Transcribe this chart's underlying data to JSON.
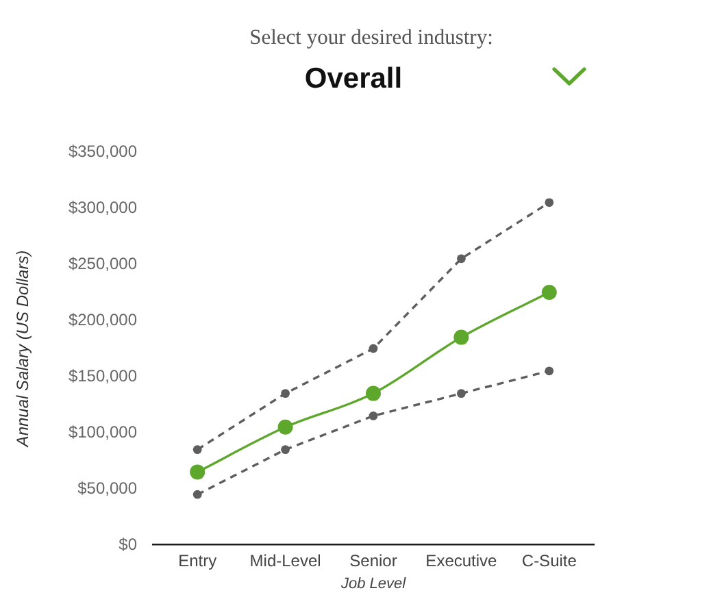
{
  "chart_data": {
    "type": "line",
    "subtitle": "Select your desired industry:",
    "title": "Overall",
    "xlabel": "Job Level",
    "ylabel": "Annual Salary (US Dollars)",
    "categories": [
      "Entry",
      "Mid-Level",
      "Senior",
      "Executive",
      "C-Suite"
    ],
    "series": [
      {
        "color": "#5e5e5e",
        "line_style": "dashed",
        "values": [
          85000,
          135000,
          175000,
          255000,
          305000
        ]
      },
      {
        "color": "#5ea72d",
        "line_style": "solid",
        "values": [
          65000,
          105000,
          135000,
          185000,
          225000
        ]
      },
      {
        "color": "#5e5e5e",
        "line_style": "dashed",
        "values": [
          45000,
          85000,
          115000,
          135000,
          155000
        ]
      }
    ],
    "ylim": [
      0,
      350000
    ],
    "yticks": [
      {
        "value": 0,
        "label": "$0"
      },
      {
        "value": 50000,
        "label": "$50,000"
      },
      {
        "value": 100000,
        "label": "$100,000"
      },
      {
        "value": 150000,
        "label": "$150,000"
      },
      {
        "value": 200000,
        "label": "$200,000"
      },
      {
        "value": 250000,
        "label": "$250,000"
      },
      {
        "value": 300000,
        "label": "$300,000"
      },
      {
        "value": 350000,
        "label": "$350,000"
      }
    ],
    "grid": false,
    "legend": false,
    "marker": "circle"
  }
}
